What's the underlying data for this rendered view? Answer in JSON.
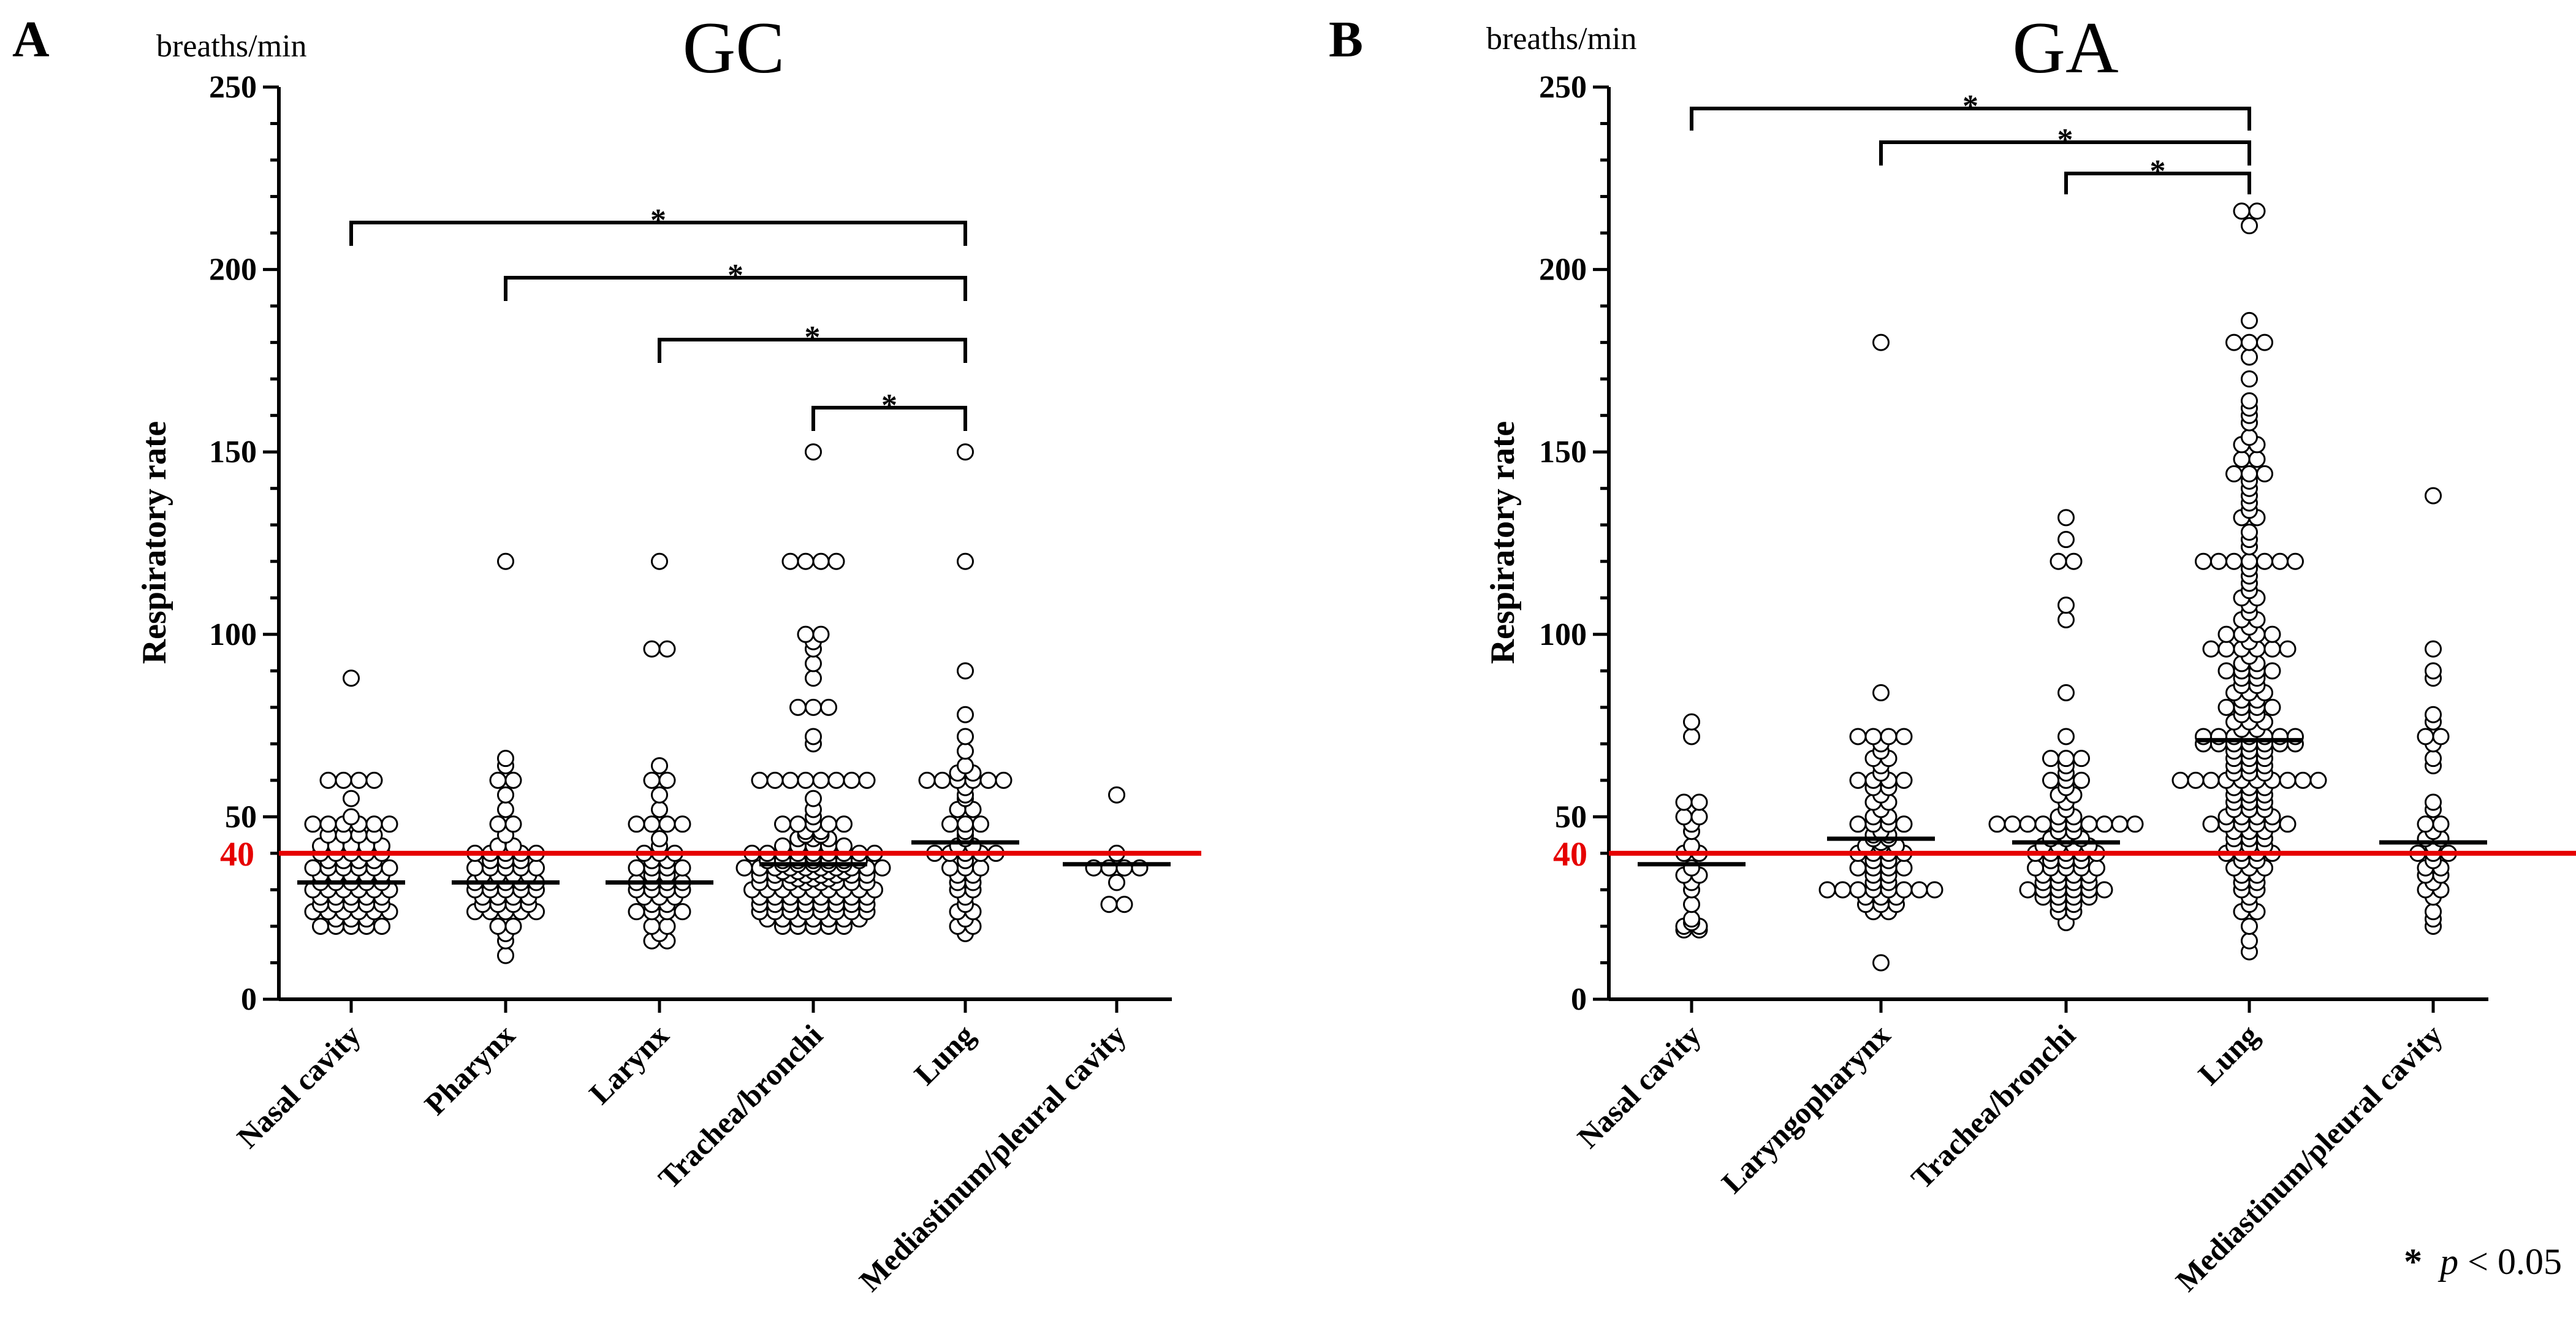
{
  "significance_note": {
    "star": "*",
    "p": "p",
    "rest": " < 0.05"
  },
  "chart_data": [
    {
      "type": "scatter",
      "panel_letter": "A",
      "title": "GC",
      "ylabel": "Respiratory rate",
      "unit_label": "breaths/min",
      "ylim": [
        0,
        250
      ],
      "yticks_major": [
        0,
        50,
        100,
        150,
        200,
        250
      ],
      "reference_line": {
        "value": 40,
        "label": "40",
        "color": "#e60000"
      },
      "categories": [
        "Nasal cavity",
        "Pharynx",
        "Larynx",
        "Trachea/bronchi",
        "Lung",
        "Mediastinum/pleural cavity"
      ],
      "medians": [
        32,
        32,
        32,
        37,
        43,
        37
      ],
      "points": [
        [
          88,
          60,
          60,
          60,
          60,
          55,
          50,
          48,
          48,
          48,
          48,
          48,
          48,
          45,
          45,
          45,
          45,
          42,
          42,
          42,
          42,
          42,
          40,
          40,
          40,
          40,
          40,
          38,
          38,
          38,
          38,
          36,
          36,
          36,
          36,
          36,
          36,
          34,
          34,
          34,
          34,
          34,
          32,
          32,
          32,
          32,
          32,
          30,
          30,
          30,
          30,
          30,
          30,
          28,
          28,
          28,
          28,
          28,
          26,
          26,
          26,
          26,
          26,
          24,
          24,
          24,
          24,
          24,
          24,
          22,
          22,
          22,
          20,
          20,
          20,
          20,
          20
        ],
        [
          120,
          66,
          64,
          60,
          60,
          56,
          52,
          48,
          48,
          45,
          42,
          42,
          40,
          40,
          40,
          40,
          40,
          38,
          38,
          38,
          36,
          36,
          36,
          36,
          36,
          34,
          34,
          34,
          34,
          32,
          32,
          32,
          32,
          32,
          30,
          30,
          30,
          30,
          30,
          28,
          28,
          28,
          28,
          26,
          26,
          26,
          26,
          24,
          24,
          24,
          24,
          24,
          20,
          20,
          18,
          16,
          12
        ],
        [
          120,
          96,
          96,
          64,
          60,
          60,
          56,
          52,
          48,
          48,
          48,
          48,
          44,
          42,
          40,
          40,
          40,
          38,
          38,
          36,
          36,
          36,
          36,
          34,
          34,
          32,
          32,
          32,
          32,
          30,
          30,
          30,
          30,
          28,
          28,
          28,
          26,
          26,
          24,
          24,
          24,
          24,
          20,
          20,
          18,
          16,
          16
        ],
        [
          150,
          120,
          120,
          120,
          120,
          100,
          100,
          98,
          96,
          92,
          88,
          80,
          80,
          80,
          72,
          70,
          60,
          60,
          60,
          60,
          60,
          60,
          60,
          60,
          55,
          52,
          50,
          48,
          48,
          48,
          48,
          48,
          46,
          46,
          45,
          45,
          44,
          44,
          44,
          42,
          42,
          42,
          42,
          42,
          40,
          40,
          40,
          40,
          40,
          40,
          40,
          40,
          40,
          39,
          38,
          38,
          38,
          38,
          38,
          38,
          38,
          37,
          37,
          37,
          37,
          37,
          36,
          36,
          36,
          36,
          36,
          36,
          36,
          36,
          36,
          36,
          35,
          35,
          35,
          35,
          35,
          34,
          34,
          34,
          34,
          34,
          34,
          34,
          34,
          33,
          33,
          33,
          32,
          32,
          32,
          32,
          32,
          32,
          32,
          32,
          30,
          30,
          30,
          30,
          30,
          30,
          30,
          30,
          30,
          28,
          28,
          28,
          28,
          28,
          28,
          28,
          28,
          26,
          26,
          26,
          26,
          26,
          26,
          26,
          26,
          24,
          24,
          24,
          24,
          24,
          24,
          24,
          24,
          22,
          22,
          22,
          22,
          22,
          22,
          22,
          20,
          20,
          20,
          20,
          20
        ],
        [
          150,
          120,
          90,
          78,
          72,
          68,
          64,
          62,
          62,
          60,
          60,
          60,
          60,
          60,
          60,
          58,
          56,
          55,
          52,
          52,
          48,
          48,
          48,
          46,
          45,
          44,
          42,
          42,
          40,
          40,
          40,
          40,
          40,
          38,
          36,
          36,
          36,
          34,
          34,
          32,
          32,
          30,
          30,
          28,
          26,
          24,
          24,
          22,
          20,
          20,
          18
        ],
        [
          56,
          40,
          36,
          36,
          36,
          36,
          32,
          26,
          26
        ]
      ],
      "significance": [
        {
          "from": "Nasal cavity",
          "to": "Lung",
          "label": "*"
        },
        {
          "from": "Pharynx",
          "to": "Lung",
          "label": "*"
        },
        {
          "from": "Larynx",
          "to": "Lung",
          "label": "*"
        },
        {
          "from": "Trachea/bronchi",
          "to": "Lung",
          "label": "*"
        }
      ]
    },
    {
      "type": "scatter",
      "panel_letter": "B",
      "title": "GA",
      "ylabel": "Respiratory rate",
      "unit_label": "breaths/min",
      "ylim": [
        0,
        250
      ],
      "yticks_major": [
        0,
        50,
        100,
        150,
        200,
        250
      ],
      "reference_line": {
        "value": 40,
        "label": "40",
        "color": "#e60000"
      },
      "categories": [
        "Nasal cavity",
        "Laryngopharynx",
        "Trachea/bronchi",
        "Lung",
        "Mediastinum/pleural cavity"
      ],
      "medians": [
        37,
        44,
        43,
        71,
        43
      ],
      "points": [
        [
          76,
          72,
          54,
          54,
          50,
          50,
          48,
          46,
          42,
          40,
          40,
          36,
          34,
          34,
          32,
          30,
          26,
          22,
          21,
          20,
          20,
          19,
          19
        ],
        [
          180,
          84,
          72,
          72,
          72,
          72,
          70,
          68,
          66,
          66,
          64,
          62,
          60,
          60,
          60,
          60,
          58,
          58,
          56,
          54,
          54,
          52,
          50,
          50,
          48,
          48,
          48,
          48,
          46,
          45,
          45,
          44,
          44,
          43,
          42,
          42,
          42,
          40,
          40,
          40,
          40,
          38,
          38,
          36,
          36,
          36,
          36,
          34,
          34,
          32,
          32,
          30,
          30,
          30,
          30,
          30,
          30,
          30,
          30,
          28,
          28,
          28,
          26,
          26,
          26,
          24,
          24,
          10
        ],
        [
          132,
          126,
          120,
          120,
          108,
          104,
          84,
          72,
          66,
          66,
          66,
          64,
          62,
          60,
          60,
          60,
          58,
          56,
          56,
          54,
          52,
          50,
          50,
          48,
          48,
          48,
          48,
          48,
          48,
          48,
          48,
          48,
          48,
          46,
          46,
          45,
          44,
          44,
          44,
          42,
          42,
          42,
          42,
          40,
          40,
          40,
          40,
          40,
          38,
          38,
          38,
          36,
          36,
          36,
          36,
          36,
          34,
          34,
          34,
          34,
          32,
          32,
          32,
          32,
          30,
          30,
          30,
          30,
          30,
          30,
          28,
          28,
          28,
          28,
          26,
          26,
          24,
          24,
          21
        ],
        [
          216,
          216,
          212,
          186,
          180,
          180,
          180,
          176,
          170,
          164,
          162,
          160,
          158,
          154,
          152,
          152,
          148,
          148,
          144,
          144,
          144,
          142,
          140,
          138,
          136,
          134,
          132,
          132,
          128,
          126,
          124,
          120,
          120,
          120,
          120,
          120,
          120,
          120,
          118,
          116,
          114,
          112,
          110,
          110,
          108,
          106,
          104,
          104,
          102,
          100,
          100,
          100,
          100,
          98,
          96,
          96,
          96,
          96,
          96,
          96,
          94,
          92,
          92,
          90,
          90,
          90,
          90,
          88,
          88,
          86,
          86,
          84,
          84,
          84,
          82,
          82,
          80,
          80,
          80,
          80,
          78,
          78,
          76,
          76,
          76,
          74,
          74,
          72,
          72,
          72,
          72,
          72,
          72,
          72,
          70,
          70,
          70,
          70,
          70,
          70,
          70,
          68,
          68,
          68,
          66,
          66,
          66,
          64,
          64,
          64,
          62,
          62,
          62,
          60,
          60,
          60,
          60,
          60,
          60,
          60,
          60,
          60,
          60,
          58,
          58,
          58,
          56,
          56,
          56,
          54,
          54,
          54,
          52,
          52,
          52,
          50,
          50,
          50,
          50,
          48,
          48,
          48,
          48,
          48,
          48,
          46,
          46,
          46,
          44,
          44,
          44,
          42,
          42,
          42,
          40,
          40,
          40,
          40,
          38,
          38,
          36,
          36,
          36,
          34,
          34,
          32,
          32,
          30,
          30,
          28,
          26,
          24,
          24,
          20,
          16,
          13
        ],
        [
          138,
          96,
          90,
          88,
          78,
          76,
          72,
          72,
          70,
          66,
          64,
          54,
          52,
          48,
          48,
          46,
          44,
          44,
          42,
          40,
          40,
          40,
          38,
          36,
          36,
          34,
          34,
          32,
          30,
          30,
          28,
          24,
          22,
          20
        ]
      ],
      "significance": [
        {
          "from": "Nasal cavity",
          "to": "Lung",
          "label": "*"
        },
        {
          "from": "Laryngopharynx",
          "to": "Lung",
          "label": "*"
        },
        {
          "from": "Trachea/bronchi",
          "to": "Lung",
          "label": "*"
        }
      ]
    }
  ]
}
